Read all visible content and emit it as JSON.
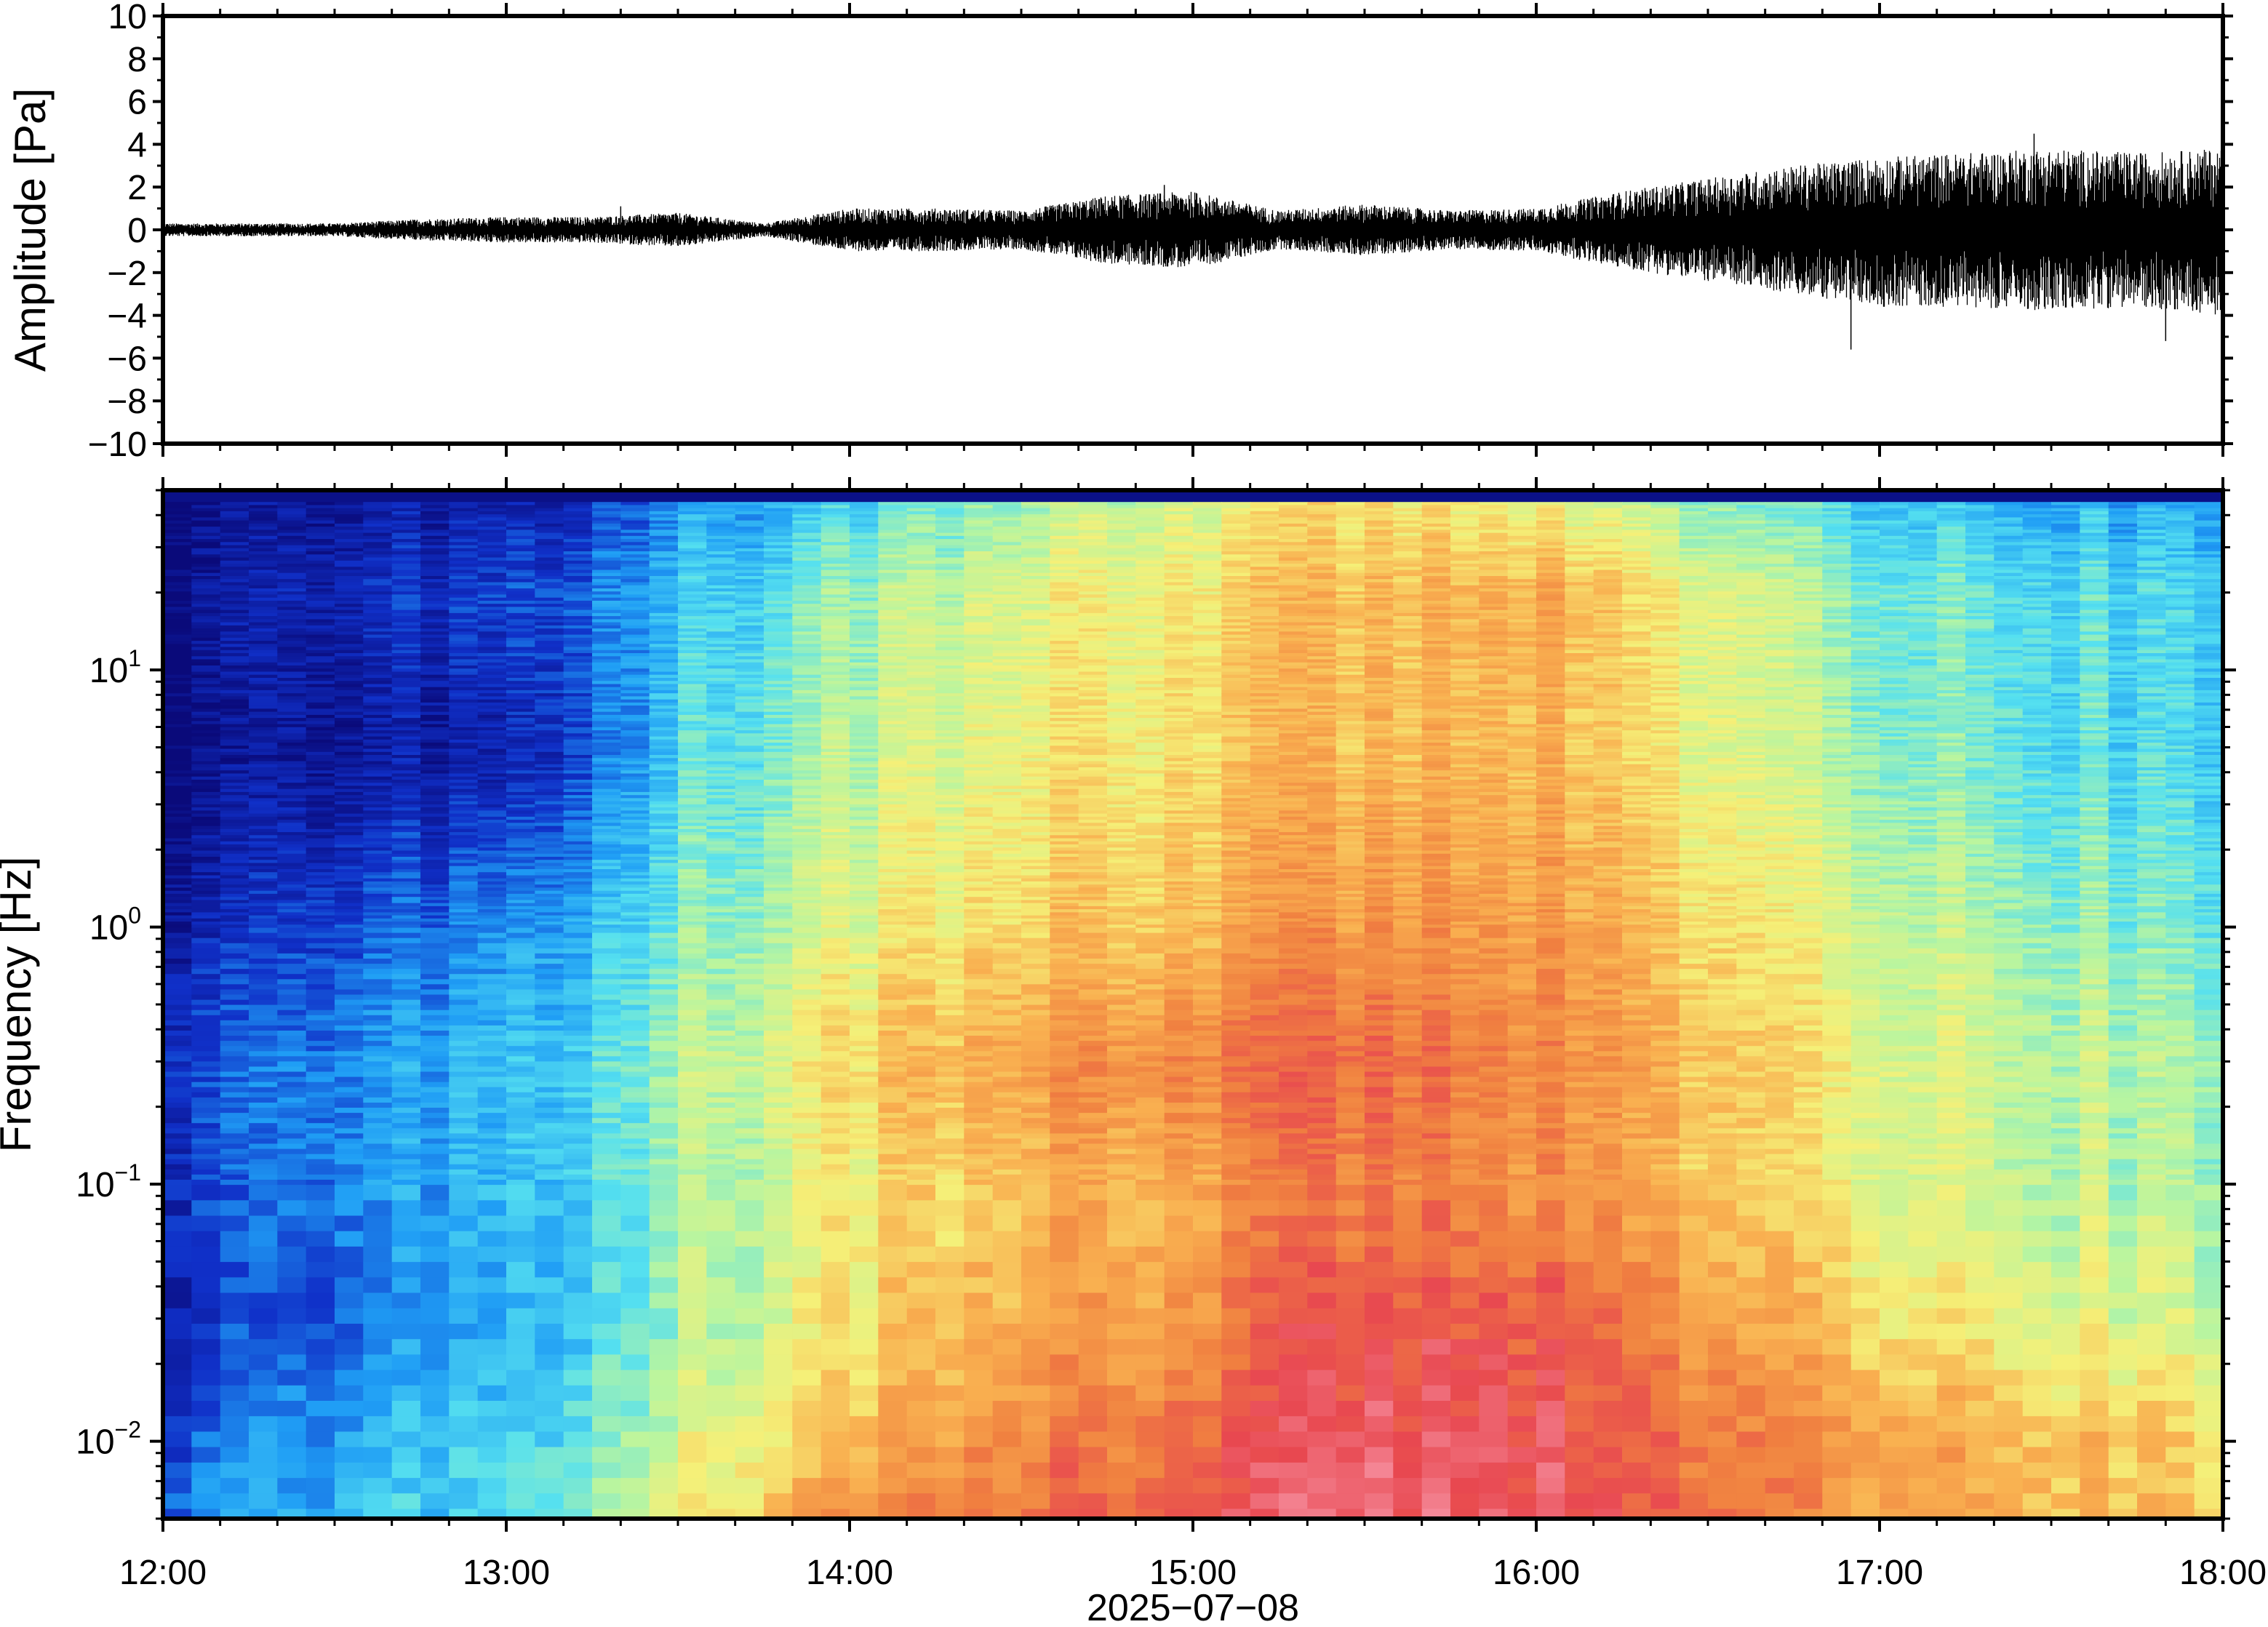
{
  "chart_data": [
    {
      "type": "line",
      "title": "",
      "xlabel": "",
      "ylabel": "Amplitude [Pa]",
      "ylim": [
        -10,
        10
      ],
      "yticks": [
        {
          "value": 10,
          "label": "10"
        },
        {
          "value": 8,
          "label": "8"
        },
        {
          "value": 6,
          "label": "6"
        },
        {
          "value": 4,
          "label": "4"
        },
        {
          "value": 2,
          "label": "2"
        },
        {
          "value": 0,
          "label": "0"
        },
        {
          "value": -2,
          "label": "−2"
        },
        {
          "value": -4,
          "label": "−4"
        },
        {
          "value": -6,
          "label": "−6"
        },
        {
          "value": -8,
          "label": "−8"
        },
        {
          "value": -10,
          "label": "−10"
        }
      ],
      "xlim": [
        "12:00",
        "18:00"
      ],
      "grid": false,
      "series": [
        {
          "x": [
            "12:00",
            "12:15",
            "12:30",
            "12:45",
            "13:00",
            "13:15",
            "13:30",
            "13:45",
            "14:00",
            "14:15",
            "14:30",
            "14:45",
            "15:00",
            "15:15",
            "15:30",
            "15:45",
            "16:00",
            "16:15",
            "16:30",
            "16:45",
            "17:00",
            "17:15",
            "17:30",
            "17:45",
            "18:00"
          ],
          "envelope_max": [
            0.3,
            0.3,
            0.3,
            0.5,
            0.6,
            0.6,
            0.8,
            0.3,
            1.0,
            1.0,
            0.9,
            1.6,
            1.8,
            0.9,
            1.2,
            0.9,
            1.0,
            1.8,
            2.4,
            3.0,
            3.4,
            3.6,
            3.8,
            3.6,
            3.8
          ],
          "envelope_min": [
            -0.3,
            -0.3,
            -0.3,
            -0.5,
            -0.6,
            -0.6,
            -0.8,
            -0.3,
            -1.0,
            -1.0,
            -0.9,
            -1.6,
            -1.8,
            -0.9,
            -1.2,
            -0.9,
            -1.0,
            -1.8,
            -2.4,
            -3.0,
            -3.6,
            -3.6,
            -3.8,
            -3.6,
            -4.0
          ],
          "peaks": [
            {
              "x": "13:20",
              "y": 1.1
            },
            {
              "x": "14:55",
              "y": 2.1
            },
            {
              "x": "16:55",
              "y": -5.6
            },
            {
              "x": "17:27",
              "y": 4.5
            },
            {
              "x": "17:50",
              "y": -5.2
            }
          ]
        }
      ]
    },
    {
      "type": "heatmap",
      "title": "",
      "xlabel": "2025−07−08",
      "ylabel": "Frequency [Hz]",
      "yscale": "log",
      "ylim": [
        0.005,
        50
      ],
      "xlim": [
        "12:00",
        "18:00"
      ],
      "xticks": [
        "12:00",
        "13:00",
        "14:00",
        "15:00",
        "16:00",
        "17:00",
        "18:00"
      ],
      "yticks": [
        {
          "value": 0.01,
          "base": "10",
          "exp": "−2"
        },
        {
          "value": 0.1,
          "base": "10",
          "exp": "−1"
        },
        {
          "value": 1,
          "base": "10",
          "exp": "0"
        },
        {
          "value": 10,
          "base": "10",
          "exp": "1"
        }
      ],
      "colormap": "rainbow (dark blue = low power, red/pink = high power)",
      "colormap_stops": [
        "#0a0a7a",
        "#1030c8",
        "#1f9df5",
        "#55e0f0",
        "#b8f5a0",
        "#f5f078",
        "#f9b050",
        "#f08040",
        "#e84850",
        "#f58a9a"
      ],
      "time_keys": [
        "12:00",
        "13:00",
        "13:35",
        "14:00",
        "14:55",
        "15:30",
        "16:00",
        "17:00",
        "18:00"
      ],
      "freq_keys_hz": [
        50,
        20,
        5,
        1,
        0.3,
        0.1,
        0.03,
        0.01,
        0.005
      ],
      "power_levels_0_to_1": [
        [
          0.0,
          0.05,
          0.22,
          0.3,
          0.5,
          0.58,
          0.52,
          0.28,
          0.22
        ],
        [
          0.02,
          0.12,
          0.3,
          0.42,
          0.58,
          0.66,
          0.68,
          0.38,
          0.3
        ],
        [
          0.0,
          0.05,
          0.34,
          0.46,
          0.6,
          0.66,
          0.66,
          0.4,
          0.3
        ],
        [
          0.05,
          0.2,
          0.4,
          0.52,
          0.66,
          0.74,
          0.72,
          0.48,
          0.36
        ],
        [
          0.12,
          0.26,
          0.46,
          0.6,
          0.78,
          0.84,
          0.76,
          0.52,
          0.42
        ],
        [
          0.1,
          0.26,
          0.44,
          0.56,
          0.7,
          0.8,
          0.74,
          0.52,
          0.42
        ],
        [
          0.08,
          0.24,
          0.44,
          0.58,
          0.74,
          0.88,
          0.86,
          0.58,
          0.48
        ],
        [
          0.14,
          0.3,
          0.52,
          0.66,
          0.82,
          0.94,
          0.9,
          0.7,
          0.6
        ],
        [
          0.18,
          0.32,
          0.58,
          0.72,
          0.86,
          0.96,
          0.92,
          0.7,
          0.62
        ]
      ]
    }
  ]
}
